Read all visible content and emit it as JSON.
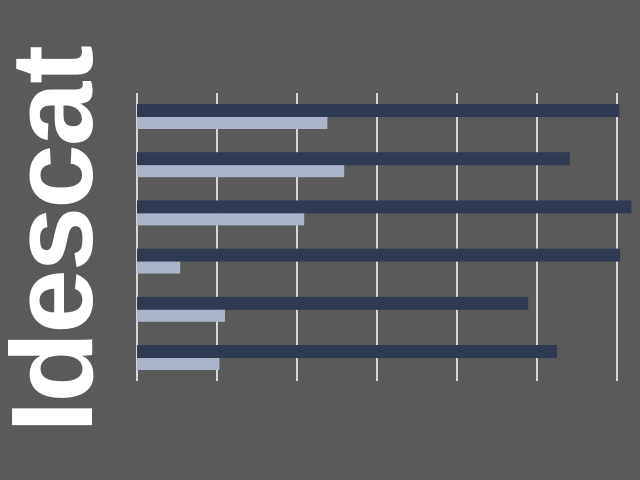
{
  "logo": {
    "text": "Idescat",
    "color": "#ffffff"
  },
  "colors": {
    "background": "#5a5a5a",
    "dark_bar": "#2f3b52",
    "light_bar": "#aab5ca",
    "grid": "#ffffff"
  },
  "chart_data": {
    "type": "bar",
    "orientation": "horizontal",
    "grid": true,
    "xlim": [
      0,
      6.2
    ],
    "grid_step": 1,
    "categories": [
      "",
      "",
      "",
      "",
      "",
      ""
    ],
    "series": [
      {
        "values": [
          6.03,
          5.41,
          6.18,
          6.04,
          4.89,
          5.25
        ],
        "color": "#2f3b52"
      },
      {
        "values": [
          2.38,
          2.59,
          2.09,
          0.54,
          1.1,
          1.03
        ],
        "color": "#aab5ca"
      }
    ]
  }
}
